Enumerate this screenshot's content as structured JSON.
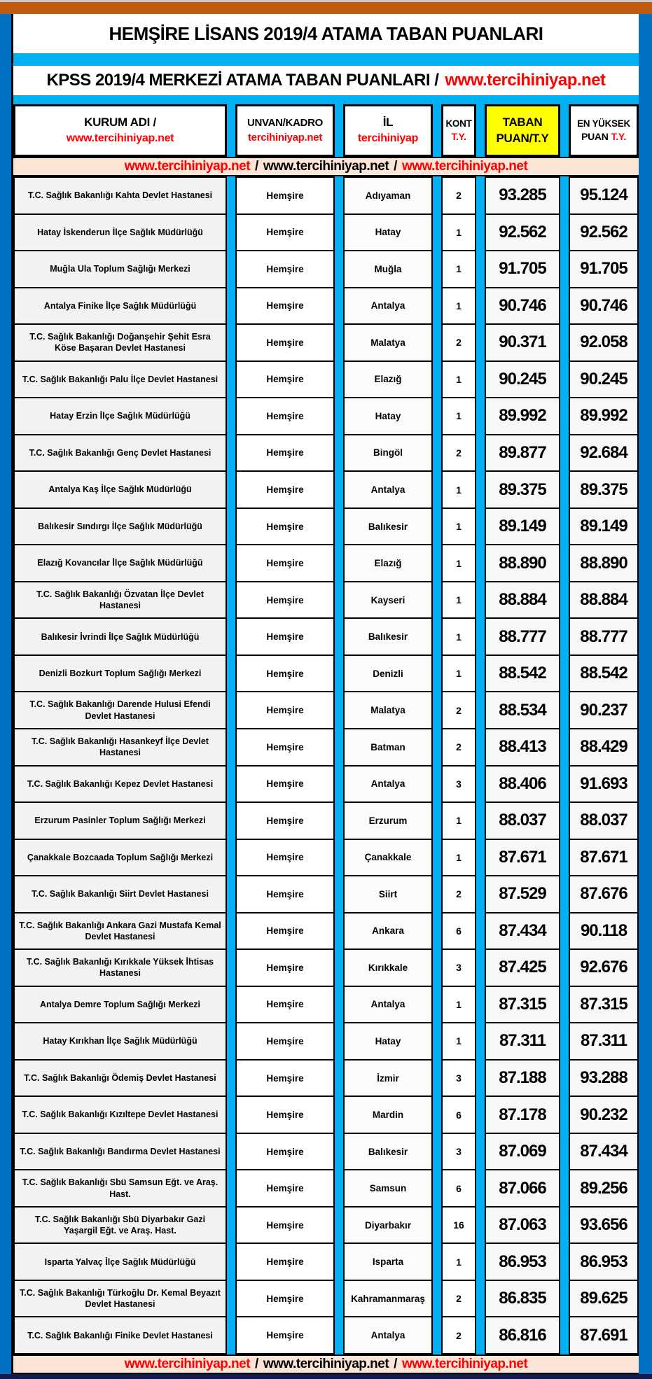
{
  "title": "HEMŞİRE LİSANS 2019/4 ATAMA TABAN PUANLARI",
  "subtitle": {
    "text": "KPSS 2019/4 MERKEZİ ATAMA TABAN PUANLARI /",
    "link": "www.tercihiniyap.net"
  },
  "columns": {
    "kurum": {
      "line1": "KURUM ADI /",
      "line2": "www.tercihiniyap.net"
    },
    "unvan": {
      "line1": "UNVAN/KADRO",
      "line2": "tercihiniyap.net"
    },
    "il": {
      "line1": "İL",
      "line2": "tercihiniyap"
    },
    "kont": {
      "line1": "KONT",
      "line2": "T.Y."
    },
    "taban": {
      "line1": "TABAN",
      "line2": "PUAN/T.Y"
    },
    "yuksek": {
      "line1": "EN YÜKSEK",
      "line2": "PUAN",
      "line2_red": "T.Y."
    }
  },
  "watermark": {
    "link1": "www.tercihiniyap.net",
    "sep": "/",
    "link2": "www.tercihiniyap.net",
    "link3": "www.tercihiniyap.net"
  },
  "rows": [
    {
      "kurum": "T.C. Sağlık Bakanlığı Kahta Devlet Hastanesi",
      "unvan": "Hemşire",
      "il": "Adıyaman",
      "kont": "2",
      "taban": "93.285",
      "yuksek": "95.124"
    },
    {
      "kurum": "Hatay İskenderun İlçe Sağlık Müdürlüğü",
      "unvan": "Hemşire",
      "il": "Hatay",
      "kont": "1",
      "taban": "92.562",
      "yuksek": "92.562"
    },
    {
      "kurum": "Muğla Ula Toplum Sağlığı Merkezi",
      "unvan": "Hemşire",
      "il": "Muğla",
      "kont": "1",
      "taban": "91.705",
      "yuksek": "91.705"
    },
    {
      "kurum": "Antalya Finike İlçe Sağlık Müdürlüğü",
      "unvan": "Hemşire",
      "il": "Antalya",
      "kont": "1",
      "taban": "90.746",
      "yuksek": "90.746"
    },
    {
      "kurum": "T.C. Sağlık Bakanlığı Doğanşehir Şehit Esra Köse Başaran Devlet Hastanesi",
      "unvan": "Hemşire",
      "il": "Malatya",
      "kont": "2",
      "taban": "90.371",
      "yuksek": "92.058"
    },
    {
      "kurum": "T.C. Sağlık Bakanlığı Palu İlçe Devlet Hastanesi",
      "unvan": "Hemşire",
      "il": "Elazığ",
      "kont": "1",
      "taban": "90.245",
      "yuksek": "90.245"
    },
    {
      "kurum": "Hatay Erzin İlçe Sağlık Müdürlüğü",
      "unvan": "Hemşire",
      "il": "Hatay",
      "kont": "1",
      "taban": "89.992",
      "yuksek": "89.992"
    },
    {
      "kurum": "T.C. Sağlık Bakanlığı Genç Devlet Hastanesi",
      "unvan": "Hemşire",
      "il": "Bingöl",
      "kont": "2",
      "taban": "89.877",
      "yuksek": "92.684"
    },
    {
      "kurum": "Antalya Kaş İlçe Sağlık Müdürlüğü",
      "unvan": "Hemşire",
      "il": "Antalya",
      "kont": "1",
      "taban": "89.375",
      "yuksek": "89.375"
    },
    {
      "kurum": "Balıkesir Sındırgı İlçe Sağlık Müdürlüğü",
      "unvan": "Hemşire",
      "il": "Balıkesir",
      "kont": "1",
      "taban": "89.149",
      "yuksek": "89.149"
    },
    {
      "kurum": "Elazığ Kovancılar İlçe Sağlık Müdürlüğü",
      "unvan": "Hemşire",
      "il": "Elazığ",
      "kont": "1",
      "taban": "88.890",
      "yuksek": "88.890"
    },
    {
      "kurum": "T.C. Sağlık Bakanlığı Özvatan İlçe Devlet Hastanesi",
      "unvan": "Hemşire",
      "il": "Kayseri",
      "kont": "1",
      "taban": "88.884",
      "yuksek": "88.884"
    },
    {
      "kurum": "Balıkesir İvrindi İlçe Sağlık Müdürlüğü",
      "unvan": "Hemşire",
      "il": "Balıkesir",
      "kont": "1",
      "taban": "88.777",
      "yuksek": "88.777"
    },
    {
      "kurum": "Denizli Bozkurt Toplum Sağlığı Merkezi",
      "unvan": "Hemşire",
      "il": "Denizli",
      "kont": "1",
      "taban": "88.542",
      "yuksek": "88.542"
    },
    {
      "kurum": "T.C. Sağlık Bakanlığı Darende Hulusi Efendi Devlet Hastanesi",
      "unvan": "Hemşire",
      "il": "Malatya",
      "kont": "2",
      "taban": "88.534",
      "yuksek": "90.237"
    },
    {
      "kurum": "T.C. Sağlık Bakanlığı Hasankeyf İlçe Devlet Hastanesi",
      "unvan": "Hemşire",
      "il": "Batman",
      "kont": "2",
      "taban": "88.413",
      "yuksek": "88.429"
    },
    {
      "kurum": "T.C. Sağlık Bakanlığı Kepez Devlet Hastanesi",
      "unvan": "Hemşire",
      "il": "Antalya",
      "kont": "3",
      "taban": "88.406",
      "yuksek": "91.693"
    },
    {
      "kurum": "Erzurum Pasinler Toplum Sağlığı Merkezi",
      "unvan": "Hemşire",
      "il": "Erzurum",
      "kont": "1",
      "taban": "88.037",
      "yuksek": "88.037"
    },
    {
      "kurum": "Çanakkale Bozcaada Toplum Sağlığı Merkezi",
      "unvan": "Hemşire",
      "il": "Çanakkale",
      "kont": "1",
      "taban": "87.671",
      "yuksek": "87.671"
    },
    {
      "kurum": "T.C. Sağlık Bakanlığı Siirt Devlet Hastanesi",
      "unvan": "Hemşire",
      "il": "Siirt",
      "kont": "2",
      "taban": "87.529",
      "yuksek": "87.676"
    },
    {
      "kurum": "T.C. Sağlık Bakanlığı Ankara Gazi Mustafa Kemal Devlet Hastanesi",
      "unvan": "Hemşire",
      "il": "Ankara",
      "kont": "6",
      "taban": "87.434",
      "yuksek": "90.118"
    },
    {
      "kurum": "T.C. Sağlık Bakanlığı Kırıkkale Yüksek İhtisas Hastanesi",
      "unvan": "Hemşire",
      "il": "Kırıkkale",
      "kont": "3",
      "taban": "87.425",
      "yuksek": "92.676"
    },
    {
      "kurum": "Antalya Demre Toplum Sağlığı Merkezi",
      "unvan": "Hemşire",
      "il": "Antalya",
      "kont": "1",
      "taban": "87.315",
      "yuksek": "87.315"
    },
    {
      "kurum": "Hatay Kırıkhan İlçe Sağlık Müdürlüğü",
      "unvan": "Hemşire",
      "il": "Hatay",
      "kont": "1",
      "taban": "87.311",
      "yuksek": "87.311"
    },
    {
      "kurum": "T.C. Sağlık Bakanlığı Ödemiş Devlet Hastanesi",
      "unvan": "Hemşire",
      "il": "İzmir",
      "kont": "3",
      "taban": "87.188",
      "yuksek": "93.288"
    },
    {
      "kurum": "T.C. Sağlık Bakanlığı Kızıltepe Devlet Hastanesi",
      "unvan": "Hemşire",
      "il": "Mardin",
      "kont": "6",
      "taban": "87.178",
      "yuksek": "90.232"
    },
    {
      "kurum": "T.C. Sağlık Bakanlığı Bandırma Devlet Hastanesi",
      "unvan": "Hemşire",
      "il": "Balıkesir",
      "kont": "3",
      "taban": "87.069",
      "yuksek": "87.434"
    },
    {
      "kurum": "T.C. Sağlık Bakanlığı Sbü Samsun Eğt. ve Araş. Hast.",
      "unvan": "Hemşire",
      "il": "Samsun",
      "kont": "6",
      "taban": "87.066",
      "yuksek": "89.256"
    },
    {
      "kurum": "T.C. Sağlık Bakanlığı Sbü Diyarbakır Gazi Yaşargil Eğt. ve Araş. Hast.",
      "unvan": "Hemşire",
      "il": "Diyarbakır",
      "kont": "16",
      "taban": "87.063",
      "yuksek": "93.656"
    },
    {
      "kurum": "Isparta Yalvaç İlçe Sağlık Müdürlüğü",
      "unvan": "Hemşire",
      "il": "Isparta",
      "kont": "1",
      "taban": "86.953",
      "yuksek": "86.953"
    },
    {
      "kurum": "T.C. Sağlık Bakanlığı Türkoğlu Dr. Kemal Beyazıt Devlet Hastanesi",
      "unvan": "Hemşire",
      "il": "Kahramanmaraş",
      "kont": "2",
      "taban": "86.835",
      "yuksek": "89.625"
    },
    {
      "kurum": "T.C. Sağlık Bakanlığı Finike Devlet Hastanesi",
      "unvan": "Hemşire",
      "il": "Antalya",
      "kont": "2",
      "taban": "86.816",
      "yuksek": "87.691"
    }
  ],
  "colors": {
    "top_bar_brown": "#C25911",
    "side_bar_blue": "#0070C0",
    "stripe_cyan": "#00B0F0",
    "highlight_yellow": "#FFFF00",
    "watermark_pink": "#FCE4D6",
    "link_red": "#FF0000",
    "row_gray": "#F2F2F2",
    "frame_navy": "#131A4A"
  }
}
